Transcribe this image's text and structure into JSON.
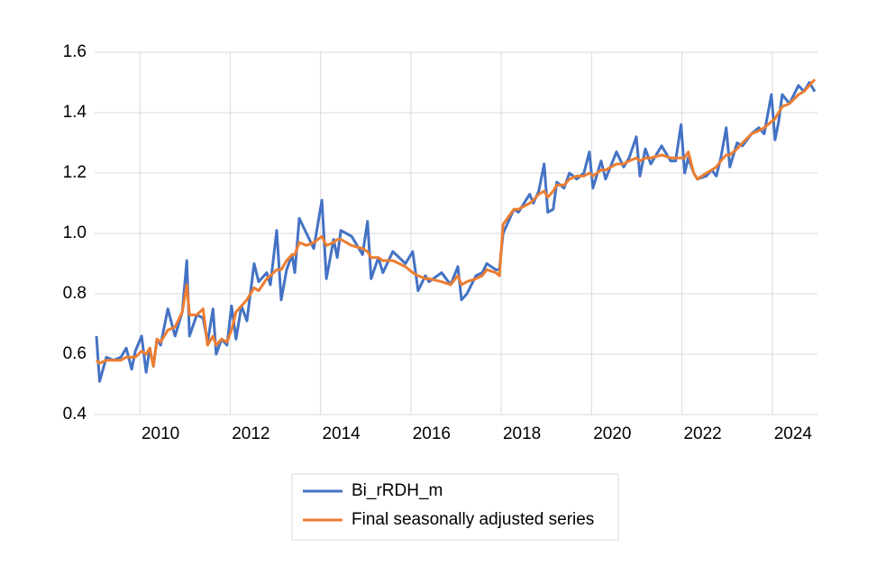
{
  "chart_data": {
    "type": "line",
    "x": [
      2009.04,
      2009.11,
      2009.26,
      2009.42,
      2009.58,
      2009.7,
      2009.82,
      2009.9,
      2010.04,
      2010.14,
      2010.22,
      2010.3,
      2010.38,
      2010.46,
      2010.62,
      2010.78,
      2010.94,
      2011.04,
      2011.1,
      2011.26,
      2011.4,
      2011.5,
      2011.62,
      2011.69,
      2011.81,
      2011.93,
      2012.03,
      2012.13,
      2012.25,
      2012.37,
      2012.53,
      2012.63,
      2012.81,
      2012.89,
      2013.03,
      2013.13,
      2013.25,
      2013.37,
      2013.43,
      2013.53,
      2013.69,
      2013.85,
      2014.03,
      2014.13,
      2014.29,
      2014.37,
      2014.45,
      2014.69,
      2014.93,
      2015.04,
      2015.12,
      2015.28,
      2015.38,
      2015.6,
      2015.88,
      2016.04,
      2016.16,
      2016.32,
      2016.4,
      2016.68,
      2016.88,
      2017.04,
      2017.12,
      2017.24,
      2017.44,
      2017.58,
      2017.68,
      2017.88,
      2017.96,
      2018.04,
      2018.28,
      2018.38,
      2018.63,
      2018.71,
      2018.83,
      2018.95,
      2019.03,
      2019.15,
      2019.23,
      2019.39,
      2019.51,
      2019.67,
      2019.83,
      2019.95,
      2020.03,
      2020.21,
      2020.31,
      2020.55,
      2020.71,
      2020.83,
      2020.99,
      2021.07,
      2021.19,
      2021.31,
      2021.55,
      2021.75,
      2021.86,
      2021.98,
      2022.06,
      2022.14,
      2022.26,
      2022.34,
      2022.54,
      2022.66,
      2022.76,
      2022.86,
      2022.98,
      2023.06,
      2023.22,
      2023.34,
      2023.54,
      2023.7,
      2023.82,
      2023.98,
      2024.06,
      2024.14,
      2024.22,
      2024.38,
      2024.58,
      2024.7,
      2024.82,
      2024.94
    ],
    "series": [
      {
        "name": "Bi_rRDH_m",
        "color": "#4472c4",
        "values": [
          0.66,
          0.51,
          0.59,
          0.58,
          0.59,
          0.62,
          0.55,
          0.61,
          0.66,
          0.54,
          0.62,
          0.56,
          0.65,
          0.63,
          0.75,
          0.66,
          0.74,
          0.91,
          0.66,
          0.73,
          0.72,
          0.64,
          0.75,
          0.6,
          0.65,
          0.63,
          0.76,
          0.65,
          0.76,
          0.71,
          0.9,
          0.84,
          0.87,
          0.83,
          1.01,
          0.78,
          0.88,
          0.93,
          0.87,
          1.05,
          1.0,
          0.95,
          1.11,
          0.85,
          0.98,
          0.92,
          1.01,
          0.99,
          0.93,
          1.04,
          0.85,
          0.92,
          0.87,
          0.94,
          0.9,
          0.94,
          0.81,
          0.86,
          0.84,
          0.87,
          0.83,
          0.89,
          0.78,
          0.8,
          0.86,
          0.87,
          0.9,
          0.88,
          0.88,
          1.0,
          1.08,
          1.07,
          1.13,
          1.1,
          1.14,
          1.23,
          1.07,
          1.08,
          1.17,
          1.15,
          1.2,
          1.18,
          1.2,
          1.27,
          1.15,
          1.24,
          1.18,
          1.27,
          1.22,
          1.25,
          1.32,
          1.19,
          1.28,
          1.23,
          1.29,
          1.24,
          1.24,
          1.36,
          1.2,
          1.25,
          1.2,
          1.18,
          1.19,
          1.21,
          1.19,
          1.25,
          1.35,
          1.22,
          1.3,
          1.29,
          1.33,
          1.35,
          1.33,
          1.46,
          1.31,
          1.37,
          1.46,
          1.43,
          1.49,
          1.47,
          1.5,
          1.47
        ]
      },
      {
        "name": "Final seasonally adjusted series",
        "color": "#ed7d31",
        "values": [
          0.58,
          0.57,
          0.58,
          0.58,
          0.58,
          0.59,
          0.59,
          0.59,
          0.61,
          0.6,
          0.62,
          0.56,
          0.65,
          0.64,
          0.68,
          0.69,
          0.74,
          0.83,
          0.73,
          0.73,
          0.75,
          0.63,
          0.66,
          0.63,
          0.65,
          0.64,
          0.68,
          0.74,
          0.76,
          0.78,
          0.82,
          0.81,
          0.85,
          0.86,
          0.88,
          0.88,
          0.91,
          0.93,
          0.93,
          0.97,
          0.96,
          0.97,
          0.99,
          0.96,
          0.97,
          0.98,
          0.98,
          0.96,
          0.95,
          0.94,
          0.92,
          0.92,
          0.91,
          0.91,
          0.89,
          0.87,
          0.86,
          0.85,
          0.85,
          0.84,
          0.83,
          0.86,
          0.83,
          0.84,
          0.85,
          0.86,
          0.88,
          0.87,
          0.86,
          1.03,
          1.08,
          1.08,
          1.1,
          1.11,
          1.13,
          1.14,
          1.12,
          1.14,
          1.16,
          1.16,
          1.18,
          1.19,
          1.19,
          1.2,
          1.19,
          1.21,
          1.21,
          1.23,
          1.23,
          1.24,
          1.25,
          1.24,
          1.25,
          1.25,
          1.26,
          1.25,
          1.25,
          1.25,
          1.25,
          1.27,
          1.2,
          1.18,
          1.2,
          1.21,
          1.22,
          1.24,
          1.26,
          1.26,
          1.28,
          1.3,
          1.33,
          1.34,
          1.35,
          1.37,
          1.38,
          1.4,
          1.42,
          1.43,
          1.46,
          1.47,
          1.49,
          1.51
        ]
      }
    ],
    "xlim": [
      2009,
      2025
    ],
    "xticks": [
      2010,
      2012,
      2014,
      2016,
      2018,
      2020,
      2022,
      2024
    ],
    "ylim": [
      0.4,
      1.6
    ],
    "yticks": [
      0.4,
      0.6,
      0.8,
      {
        "value": 1,
        "label": "1.0"
      },
      1.2,
      1.4,
      1.6
    ],
    "grid": true
  }
}
